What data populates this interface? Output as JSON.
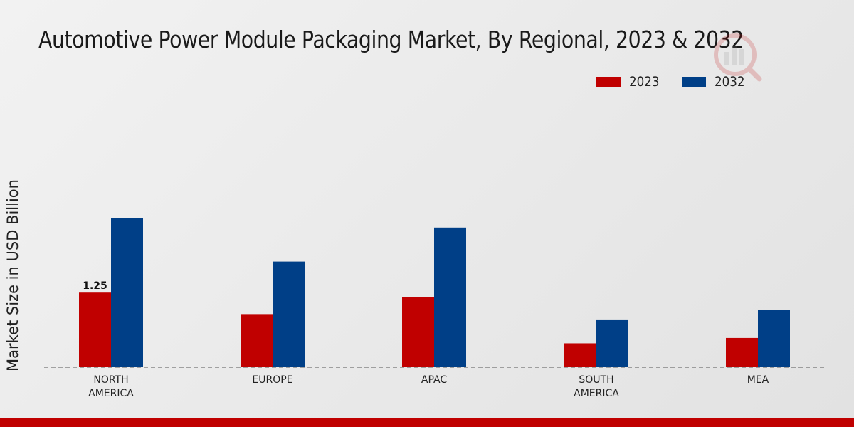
{
  "chart_data": {
    "type": "bar",
    "title": "Automotive Power Module Packaging Market, By Regional, 2023 & 2032",
    "xlabel": "",
    "ylabel": "Market Size in USD Billion",
    "categories": [
      [
        "NORTH",
        "AMERICA"
      ],
      [
        "EUROPE"
      ],
      [
        "APAC"
      ],
      [
        "SOUTH",
        "AMERICA"
      ],
      [
        "MEA"
      ]
    ],
    "series": [
      {
        "name": "2023",
        "color": "#c00000",
        "values": [
          1.25,
          0.89,
          1.17,
          0.4,
          0.49
        ]
      },
      {
        "name": "2032",
        "color": "#003f87",
        "values": [
          2.5,
          1.77,
          2.34,
          0.8,
          0.96
        ]
      }
    ],
    "data_labels": [
      {
        "series": 0,
        "index": 0,
        "text": "1.25"
      }
    ],
    "ylim": [
      0,
      4.27
    ],
    "legend": "top-right",
    "grid": false
  }
}
